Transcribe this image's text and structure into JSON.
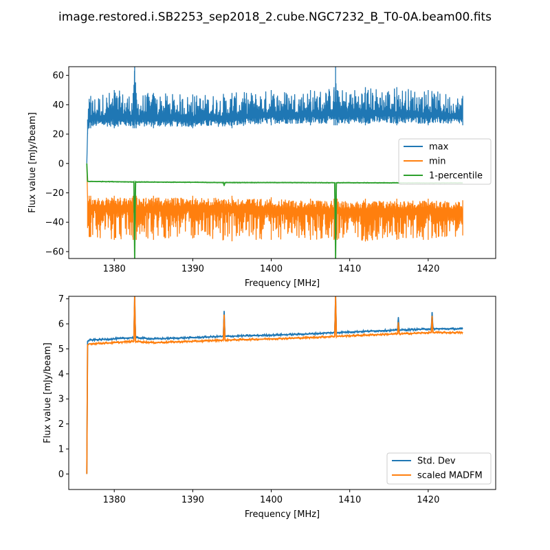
{
  "figure_title": "image.restored.i.SB2253_sep2018_2.cube.NGC7232_B_T0-0A.beam00.fits",
  "colors": {
    "max": "#1f77b4",
    "min": "#ff7f0e",
    "percentile": "#2ca02c",
    "std": "#1f77b4",
    "madfm": "#ff7f0e"
  },
  "chart_data": [
    {
      "type": "line",
      "xlabel": "Frequency [MHz]",
      "ylabel": "Flux value [mJy/beam]",
      "xlim": [
        1374.2,
        1428.6
      ],
      "ylim": [
        -64.7,
        65.9
      ],
      "xticks": [
        1380,
        1390,
        1400,
        1410,
        1420
      ],
      "xtick_labels": [
        "1380",
        "1390",
        "1400",
        "1410",
        "1420"
      ],
      "yticks": [
        -60,
        -40,
        -20,
        0,
        20,
        40,
        60
      ],
      "ytick_labels": [
        "−60",
        "−40",
        "−20",
        "0",
        "20",
        "40",
        "60"
      ],
      "legend_loc": "center-right",
      "series": [
        {
          "name": "max",
          "key": "max",
          "x": [
            1376.5,
            1376.6,
            1376.8,
            1377.0,
            1380.0,
            1382.4,
            1382.6,
            1382.8,
            1385.0,
            1390.0,
            1395.0,
            1400.0,
            1405.0,
            1408.0,
            1408.2,
            1408.4,
            1412.0,
            1416.0,
            1420.0,
            1424.4
          ],
          "lower": [
            0,
            20,
            24,
            24,
            24,
            24,
            24,
            24,
            24,
            24,
            24,
            26,
            26,
            26,
            26,
            26,
            26,
            26,
            26,
            26
          ],
          "upper": [
            0,
            30,
            44,
            46,
            50,
            48,
            66,
            48,
            48,
            47,
            48,
            50,
            50,
            52,
            66,
            50,
            52,
            52,
            50,
            46
          ]
        },
        {
          "name": "min",
          "key": "min",
          "x": [
            1376.5,
            1376.6,
            1376.8,
            1377.0,
            1380.0,
            1382.4,
            1382.6,
            1382.8,
            1385.0,
            1390.0,
            1395.0,
            1400.0,
            1405.0,
            1408.0,
            1408.2,
            1408.4,
            1412.0,
            1416.0,
            1420.0,
            1424.4
          ],
          "lower": [
            0,
            -44,
            -50,
            -50,
            -52,
            -52,
            -52,
            -52,
            -52,
            -51,
            -53,
            -52,
            -52,
            -52,
            -53,
            -52,
            -53,
            -52,
            -52,
            -49
          ],
          "upper": [
            0,
            -22,
            -22,
            -22,
            -22,
            -22,
            -22,
            -22,
            -22,
            -22,
            -22,
            -23,
            -24,
            -24,
            -24,
            -24,
            -24,
            -24,
            -24,
            -25
          ]
        },
        {
          "name": "1-percentile",
          "key": "percentile",
          "x": [
            1376.5,
            1376.6,
            1380.0,
            1382.5,
            1382.6,
            1382.7,
            1390.0,
            1393.9,
            1394.0,
            1394.1,
            1400.0,
            1408.1,
            1408.2,
            1408.3,
            1416.0,
            1420.0,
            1424.4
          ],
          "y": [
            0,
            -12.2,
            -12.4,
            -12.6,
            -65,
            -12.6,
            -12.8,
            -13.0,
            -15,
            -13.0,
            -13.0,
            -13.1,
            -65,
            -13.1,
            -13.2,
            -13.3,
            -13.2
          ]
        }
      ]
    },
    {
      "type": "line",
      "xlabel": "Frequency [MHz]",
      "ylabel": "Flux value [mJy/beam]",
      "xlim": [
        1374.2,
        1428.6
      ],
      "ylim": [
        -0.62,
        7.1
      ],
      "xticks": [
        1380,
        1390,
        1400,
        1410,
        1420
      ],
      "xtick_labels": [
        "1380",
        "1390",
        "1400",
        "1410",
        "1420"
      ],
      "yticks": [
        0,
        1,
        2,
        3,
        4,
        5,
        6,
        7
      ],
      "ytick_labels": [
        "0",
        "1",
        "2",
        "3",
        "4",
        "5",
        "6",
        "7"
      ],
      "legend_loc": "lower-right",
      "series": [
        {
          "name": "Std. Dev",
          "key": "std",
          "x": [
            1376.5,
            1376.6,
            1376.8,
            1380.0,
            1382.5,
            1382.6,
            1382.7,
            1385.0,
            1390.0,
            1393.9,
            1394.0,
            1394.1,
            1400.0,
            1405.0,
            1408.1,
            1408.2,
            1408.3,
            1412.0,
            1416.1,
            1416.2,
            1416.3,
            1420.4,
            1420.5,
            1420.6,
            1424.4
          ],
          "y": [
            0,
            5.3,
            5.35,
            5.4,
            5.45,
            7.1,
            5.45,
            5.4,
            5.45,
            5.5,
            6.5,
            5.5,
            5.55,
            5.6,
            5.65,
            7.1,
            5.65,
            5.7,
            5.75,
            6.25,
            5.75,
            5.8,
            6.45,
            5.8,
            5.8
          ]
        },
        {
          "name": "scaled MADFM",
          "key": "madfm",
          "x": [
            1376.5,
            1376.6,
            1376.8,
            1380.0,
            1382.5,
            1382.6,
            1382.7,
            1385.0,
            1390.0,
            1393.9,
            1394.0,
            1394.1,
            1400.0,
            1405.0,
            1408.1,
            1408.2,
            1408.3,
            1412.0,
            1416.1,
            1416.2,
            1416.3,
            1420.4,
            1420.5,
            1420.6,
            1424.4
          ],
          "y": [
            0,
            5.15,
            5.2,
            5.25,
            5.3,
            7.1,
            5.3,
            5.25,
            5.3,
            5.35,
            6.35,
            5.35,
            5.4,
            5.45,
            5.5,
            7.1,
            5.5,
            5.55,
            5.6,
            6.05,
            5.6,
            5.65,
            6.3,
            5.65,
            5.65
          ]
        }
      ]
    }
  ]
}
